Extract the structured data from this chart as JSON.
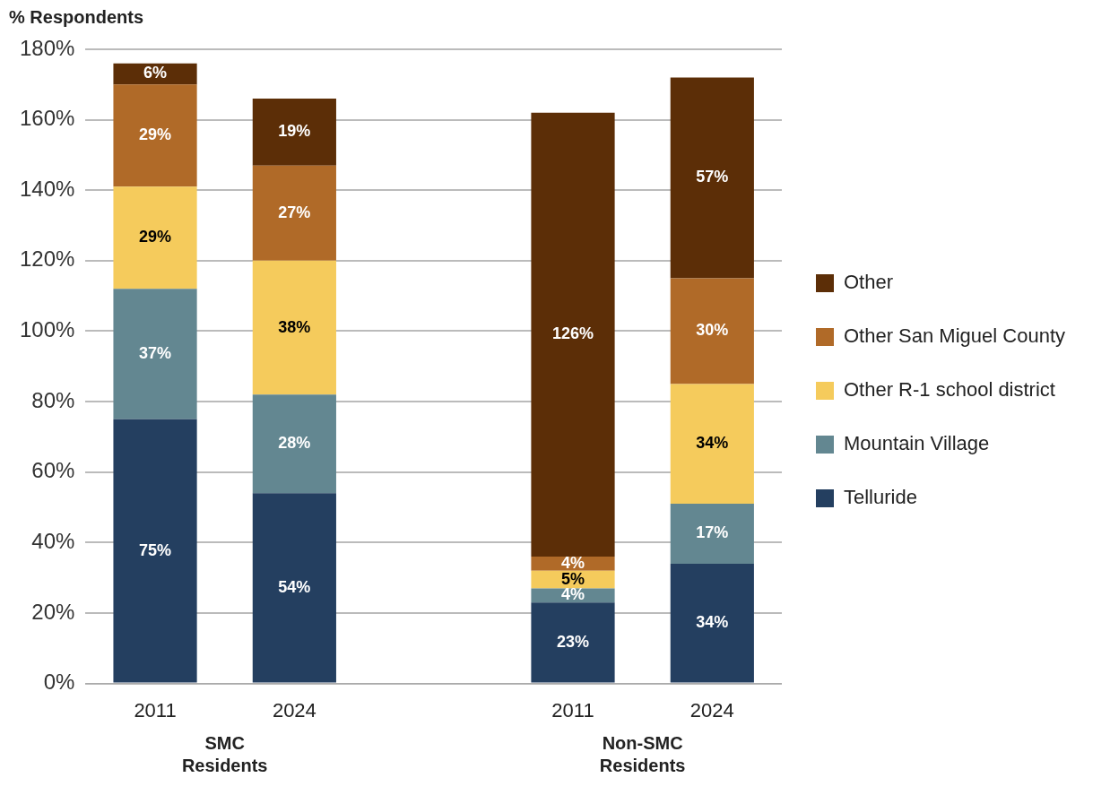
{
  "chart_data": {
    "type": "bar",
    "stacked": true,
    "ylabel": "% Respondents",
    "categories": [
      "2011",
      "2024",
      null,
      "2011",
      "2024"
    ],
    "series": [
      {
        "name": "Telluride",
        "color": "#243f60",
        "values": [
          75,
          54,
          null,
          23,
          34
        ],
        "value_labels": [
          "75%",
          "54%",
          null,
          "23%",
          "34%"
        ]
      },
      {
        "name": "Mountain Village",
        "color": "#638791",
        "values": [
          37,
          28,
          null,
          4,
          17
        ],
        "value_labels": [
          "37%",
          "28%",
          null,
          "4%",
          "17%"
        ]
      },
      {
        "name": "Other R-1 school district",
        "color": "#f5cb5c",
        "values": [
          29,
          38,
          null,
          5,
          34
        ],
        "value_labels": [
          "29%",
          "38%",
          null,
          "5%",
          "34%"
        ]
      },
      {
        "name": "Other San Miguel County",
        "color": "#b06a28",
        "values": [
          29,
          27,
          null,
          4,
          30
        ],
        "value_labels": [
          "29%",
          "27%",
          null,
          "4%",
          "30%"
        ]
      },
      {
        "name": "Other",
        "color": "#5c2e07",
        "values": [
          6,
          19,
          null,
          126,
          57
        ],
        "value_labels": [
          "6%",
          "19%",
          null,
          "126%",
          "57%"
        ]
      }
    ],
    "ylim": [
      0,
      180
    ],
    "yticks": [
      {
        "value": 0,
        "label": "0%"
      },
      {
        "value": 20,
        "label": "20%"
      },
      {
        "value": 40,
        "label": "40%"
      },
      {
        "value": 60,
        "label": "60%"
      },
      {
        "value": 80,
        "label": "80%"
      },
      {
        "value": 100,
        "label": "100%"
      },
      {
        "value": 120,
        "label": "120%"
      },
      {
        "value": 140,
        "label": "140%"
      },
      {
        "value": 160,
        "label": "160%"
      },
      {
        "value": 180,
        "label": "180%"
      }
    ],
    "grid": "y",
    "legend": "right",
    "annotations": [
      "SMC\nResidents",
      "Non-SMC\nResidents"
    ]
  }
}
